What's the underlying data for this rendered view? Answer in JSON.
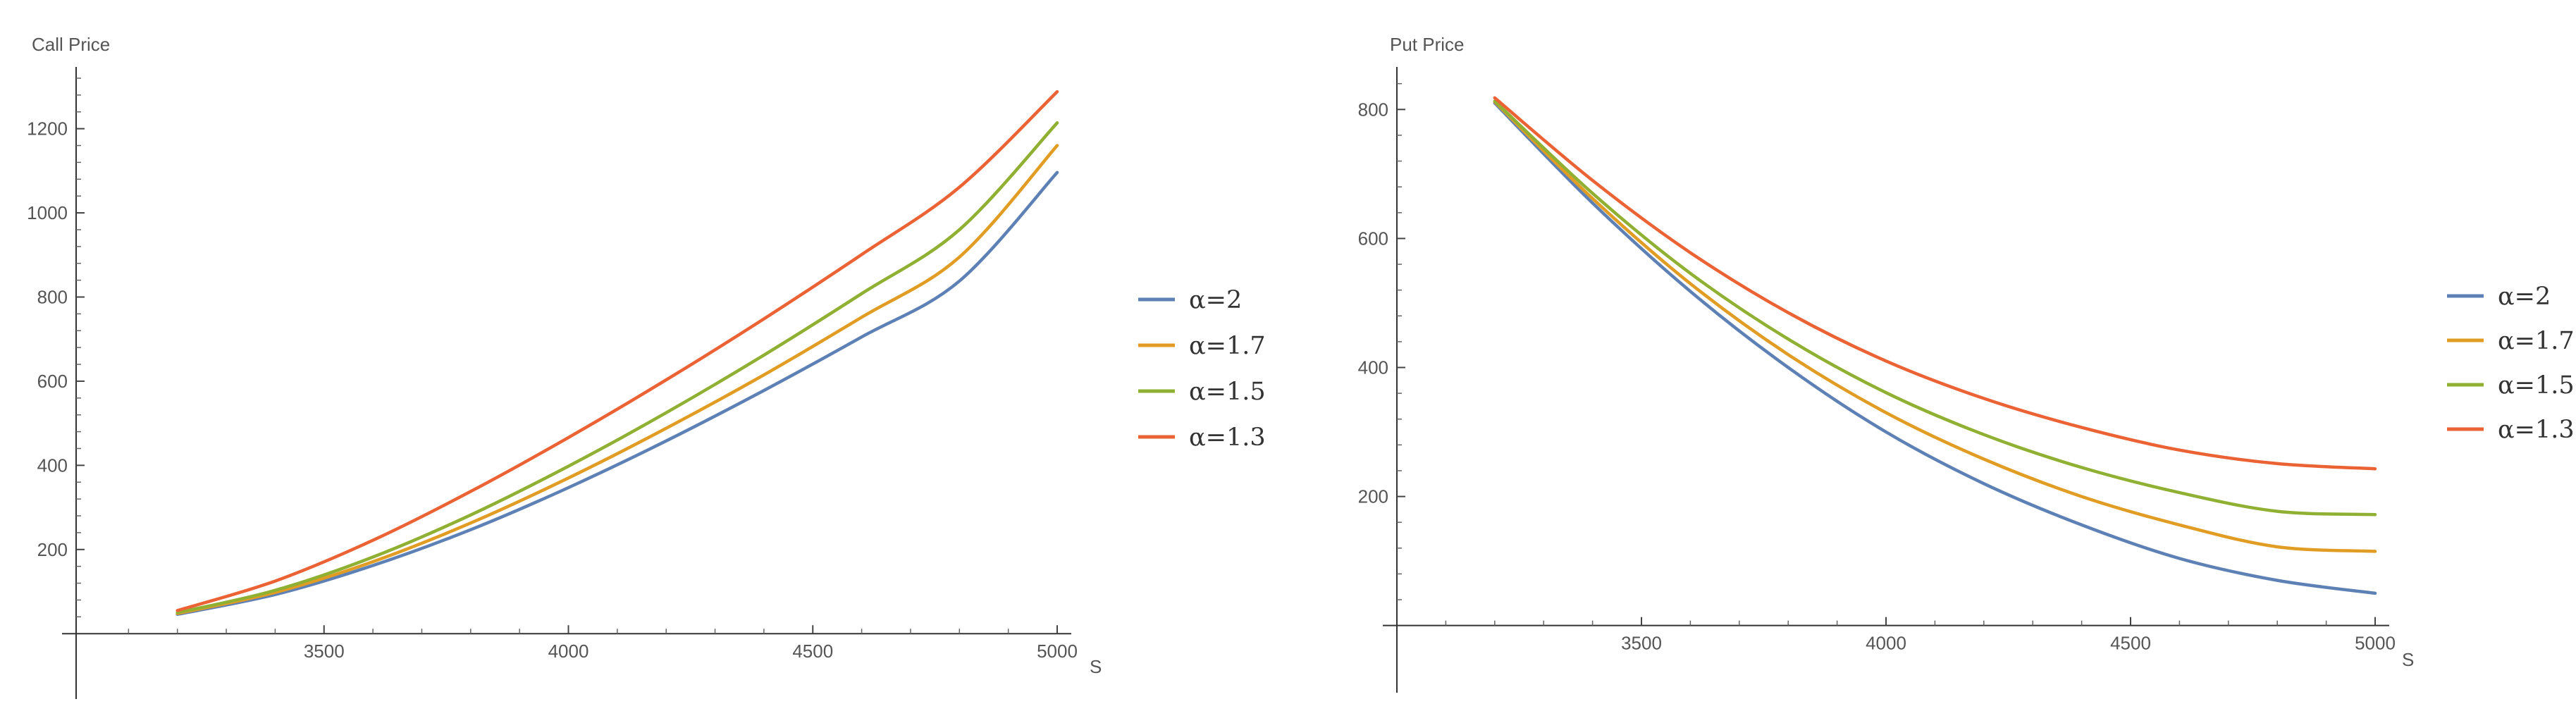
{
  "chart_data": [
    {
      "type": "line",
      "ylabel": "Call Price",
      "xlabel": "S",
      "xlim": [
        3000,
        5000
      ],
      "ylim": [
        -80,
        1330
      ],
      "x_ticks": [
        3500,
        4000,
        4500,
        5000
      ],
      "y_ticks": [
        200,
        400,
        600,
        800,
        1000,
        1200
      ],
      "legend_position": "right",
      "series": [
        {
          "name": "α=2",
          "color": "#5E81B5",
          "x": [
            3200,
            3400,
            3600,
            3800,
            4000,
            4200,
            4400,
            4600,
            4800,
            5000
          ],
          "y": [
            46,
            93,
            162,
            247,
            347,
            458,
            578,
            705,
            838,
            1096
          ]
        },
        {
          "name": "α=1.7",
          "color": "#E19C24",
          "x": [
            3200,
            3400,
            3600,
            3800,
            4000,
            4200,
            4400,
            4600,
            4800,
            5000
          ],
          "y": [
            48,
            98,
            171,
            263,
            370,
            488,
            615,
            752,
            895,
            1160
          ]
        },
        {
          "name": "α=1.5",
          "color": "#8FB032",
          "x": [
            3200,
            3400,
            3600,
            3800,
            4000,
            4200,
            4400,
            4600,
            4800,
            5000
          ],
          "y": [
            50,
            103,
            182,
            282,
            398,
            525,
            662,
            808,
            960,
            1214
          ]
        },
        {
          "name": "α=1.3",
          "color": "#EB6235",
          "x": [
            3200,
            3400,
            3600,
            3800,
            4000,
            4200,
            4400,
            4600,
            4800,
            5000
          ],
          "y": [
            55,
            125,
            222,
            338,
            466,
            603,
            748,
            901,
            1061,
            1288
          ]
        }
      ]
    },
    {
      "type": "line",
      "ylabel": "Put Price",
      "xlabel": "S",
      "xlim": [
        3000,
        5000
      ],
      "ylim": [
        -55,
        855
      ],
      "x_ticks": [
        3500,
        4000,
        4500,
        5000
      ],
      "y_ticks": [
        200,
        400,
        600,
        800
      ],
      "legend_position": "right",
      "series": [
        {
          "name": "α=2",
          "color": "#5E81B5",
          "x": [
            3200,
            3400,
            3600,
            3800,
            4000,
            4200,
            4400,
            4600,
            4800,
            5000
          ],
          "y": [
            810,
            655,
            518,
            400,
            300,
            220,
            156,
            104,
            70,
            50
          ]
        },
        {
          "name": "α=1.7",
          "color": "#E19C24",
          "x": [
            3200,
            3400,
            3600,
            3800,
            4000,
            4200,
            4400,
            4600,
            4800,
            5000
          ],
          "y": [
            812,
            662,
            530,
            420,
            330,
            258,
            200,
            156,
            122,
            115
          ]
        },
        {
          "name": "α=1.5",
          "color": "#8FB032",
          "x": [
            3200,
            3400,
            3600,
            3800,
            4000,
            4200,
            4400,
            4600,
            4800,
            5000
          ],
          "y": [
            813,
            670,
            546,
            444,
            361,
            296,
            245,
            206,
            177,
            172
          ]
        },
        {
          "name": "α=1.3",
          "color": "#EB6235",
          "x": [
            3200,
            3400,
            3600,
            3800,
            4000,
            4200,
            4400,
            4600,
            4800,
            5000
          ],
          "y": [
            818,
            690,
            578,
            485,
            410,
            352,
            307,
            272,
            251,
            243
          ]
        }
      ]
    }
  ]
}
